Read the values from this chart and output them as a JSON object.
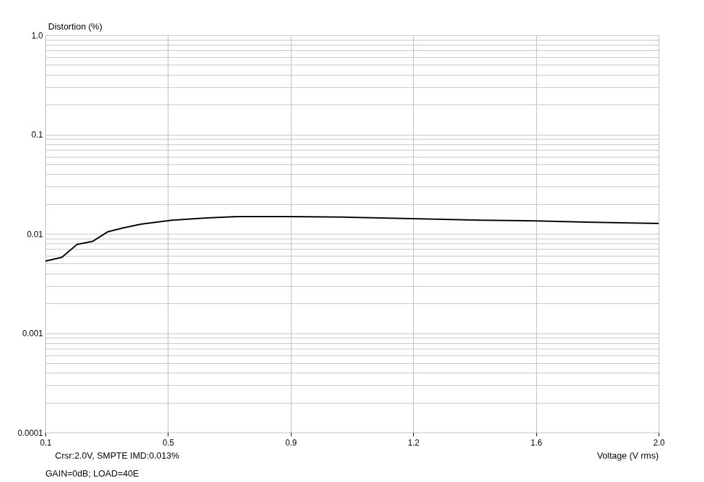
{
  "chart_data": {
    "type": "line",
    "xlabel": "Voltage (V rms)",
    "ylabel": "Distortion (%)",
    "annotations": [
      "Crsr:2.0V, SMPTE IMD:0.013%",
      "GAIN=0dB; LOAD=40E"
    ],
    "log": "y",
    "grid": true,
    "marker": "none",
    "line_style": "solid",
    "xlim": [
      0.1,
      2.0
    ],
    "ylim": [
      0.0001,
      1.0
    ],
    "xticks": [
      0.1,
      {
        "value": 0.48,
        "label": "0.5"
      },
      {
        "value": 0.86,
        "label": "0.9"
      },
      {
        "value": 1.24,
        "label": "1.2"
      },
      {
        "value": 1.62,
        "label": "1.6"
      },
      {
        "value": 2.0,
        "label": "2.0"
      }
    ],
    "yticks": [
      0.0001,
      {
        "value": 0.0002,
        "label": null
      },
      {
        "value": 0.0003,
        "label": null
      },
      {
        "value": 0.0004,
        "label": null
      },
      {
        "value": 0.0005,
        "label": null
      },
      {
        "value": 0.0006,
        "label": null
      },
      {
        "value": 0.0007,
        "label": null
      },
      {
        "value": 0.0008,
        "label": null
      },
      {
        "value": 0.0009,
        "label": null
      },
      0.001,
      {
        "value": 0.002,
        "label": null
      },
      {
        "value": 0.003,
        "label": null
      },
      {
        "value": 0.004,
        "label": null
      },
      {
        "value": 0.005,
        "label": null
      },
      {
        "value": 0.006,
        "label": null
      },
      {
        "value": 0.007,
        "label": null
      },
      {
        "value": 0.008,
        "label": null
      },
      {
        "value": 0.009,
        "label": null
      },
      0.01,
      {
        "value": 0.02,
        "label": null
      },
      {
        "value": 0.03,
        "label": null
      },
      {
        "value": 0.04,
        "label": null
      },
      {
        "value": 0.05,
        "label": null
      },
      {
        "value": 0.06,
        "label": null
      },
      {
        "value": 0.07,
        "label": null
      },
      {
        "value": 0.08,
        "label": null
      },
      {
        "value": 0.09,
        "label": null
      },
      0.1,
      {
        "value": 0.2,
        "label": null
      },
      {
        "value": 0.3,
        "label": null
      },
      {
        "value": 0.4,
        "label": null
      },
      {
        "value": 0.5,
        "label": null
      },
      {
        "value": 0.6,
        "label": null
      },
      {
        "value": 0.7,
        "label": null
      },
      {
        "value": 0.8,
        "label": null
      },
      {
        "value": 0.9,
        "label": null
      },
      {
        "value": 1.0,
        "label": "1.0"
      }
    ],
    "series": [
      {
        "color": "#000000",
        "x": [
          0.1,
          0.151,
          0.198,
          0.247,
          0.294,
          0.343,
          0.396,
          0.492,
          0.598,
          0.694,
          0.854,
          1.024,
          1.237,
          1.45,
          1.62,
          1.77,
          2.0
        ],
        "values": [
          0.0053,
          0.0058,
          0.0078,
          0.0084,
          0.0105,
          0.0115,
          0.0125,
          0.0137,
          0.0144,
          0.0149,
          0.0149,
          0.0147,
          0.0142,
          0.0137,
          0.0135,
          0.0131,
          0.0127
        ]
      }
    ]
  }
}
